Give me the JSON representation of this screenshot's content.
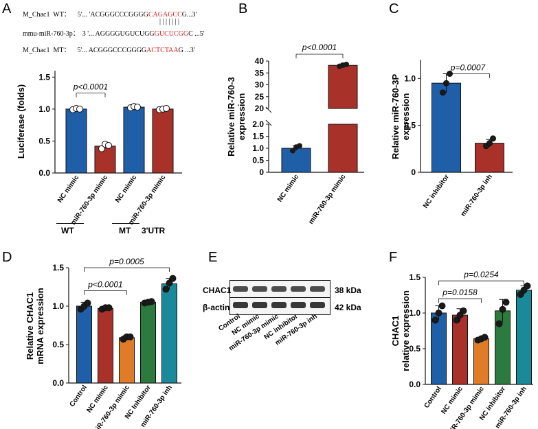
{
  "labels": {
    "A": "A",
    "B": "B",
    "C": "C",
    "D": "D",
    "E": "E",
    "F": "F"
  },
  "sequences": {
    "wt_label": "M_Chac1  WT：",
    "wt_prefix": "5'... 'ACGGGCCCGGGG",
    "wt_red": "CAGAGCC",
    "wt_suffix": "G...3'",
    "bars": "| | | | | | |",
    "mir_label": "mmu-miR-760-3p：",
    "mir_prefix": "3 '... AGGGGUGUCUGG",
    "mir_red": "GUCUCGG",
    "mir_suffix": "C ...5'",
    "mt_label": "M_Chac1  MT：",
    "mt_prefix": "5'... ACGGGCCCGGGG",
    "mt_red": "ACTCTAA",
    "mt_suffix": "G ...3'"
  },
  "colors": {
    "blue": "#1f5fa8",
    "red": "#a8322a",
    "orange": "#e07b27",
    "green": "#2d7a3e",
    "teal": "#1a8a9a"
  },
  "groups_A": {
    "wt": "WT",
    "mt": "MT",
    "utr": "3'UTR"
  },
  "western": {
    "bands": [
      {
        "name": "CHAC1",
        "kda": "38 kDa"
      },
      {
        "name": "β-actin",
        "kda": "42 kDa"
      }
    ],
    "lanes": [
      "Control",
      "NC mimic",
      "miR-760-3p mimic",
      "NC inhibitor",
      "miR-760-3p inh"
    ]
  },
  "chart_data": [
    {
      "panel": "A",
      "type": "bar",
      "ylabel": "Luciferase (folds)",
      "ylim": [
        0,
        1.6
      ],
      "yticks": [
        0.0,
        0.5,
        1.0,
        1.5
      ],
      "categories": [
        "NC mimic",
        "miR-760-3p mimic",
        "NC mimic",
        "miR-760-3p mimic"
      ],
      "values": [
        1.0,
        0.42,
        1.03,
        1.0
      ],
      "errors": [
        0.02,
        0.04,
        0.02,
        0.02
      ],
      "points": [
        [
          0.99,
          1.01,
          1.0
        ],
        [
          0.38,
          0.45,
          0.43
        ],
        [
          1.02,
          1.04,
          1.03
        ],
        [
          0.99,
          1.0,
          1.01
        ]
      ],
      "colors": [
        "blue",
        "red",
        "blue",
        "red"
      ],
      "annotations": [
        {
          "from": 0,
          "to": 1,
          "text": "p<0.0001",
          "y": 1.25
        }
      ]
    },
    {
      "panel": "B",
      "type": "bar",
      "ylabel": "Relative miR-760-3 expression",
      "broken": true,
      "yticks_low": [
        "0",
        "0.5",
        "1.0",
        "1.5",
        "2.0"
      ],
      "yticks_high": [
        "20",
        "25",
        "30",
        "35",
        "40"
      ],
      "categories": [
        "NC mimic",
        "miR-760-3p mimic"
      ],
      "values": [
        1.0,
        38.2
      ],
      "errors": [
        0.1,
        0.6
      ],
      "points": [
        [
          0.9,
          1.05,
          1.1
        ],
        [
          37.8,
          38.3,
          38.6
        ]
      ],
      "colors": [
        "blue",
        "red"
      ],
      "annotations": [
        {
          "from": 0,
          "to": 1,
          "text": "p<0.0001"
        }
      ]
    },
    {
      "panel": "C",
      "type": "bar",
      "ylabel": "Relative miR-760-3P expression",
      "ylim": [
        0,
        1.2
      ],
      "yticks": [
        0,
        0.5,
        1.0
      ],
      "categories": [
        "NC inhibitor",
        "miR-760-3p inh"
      ],
      "values": [
        0.95,
        0.31
      ],
      "errors": [
        0.1,
        0.04
      ],
      "points": [
        [
          0.85,
          0.95,
          1.05
        ],
        [
          0.28,
          0.31,
          0.36
        ]
      ],
      "colors": [
        "blue",
        "red"
      ],
      "annotations": [
        {
          "from": 0,
          "to": 1,
          "text": "p=0.0007",
          "y": 1.05
        }
      ]
    },
    {
      "panel": "D",
      "type": "bar",
      "ylabel": "Relative CHAC1 mRNA expression",
      "ylim": [
        0,
        1.5
      ],
      "yticks": [
        0.0,
        0.5,
        1.0,
        1.5
      ],
      "categories": [
        "Control",
        "NC mimic",
        "miR-760-3p mimic",
        "NC Inhibitor",
        "miR-760-3p inh"
      ],
      "values": [
        1.0,
        0.97,
        0.59,
        1.05,
        1.29
      ],
      "errors": [
        0.05,
        0.03,
        0.03,
        0.02,
        0.07
      ],
      "points": [
        [
          0.96,
          1.0,
          1.04
        ],
        [
          0.96,
          0.98,
          0.98
        ],
        [
          0.57,
          0.6,
          0.6
        ],
        [
          1.04,
          1.05,
          1.06
        ],
        [
          1.22,
          1.3,
          1.36
        ]
      ],
      "colors": [
        "blue",
        "red",
        "orange",
        "green",
        "teal"
      ],
      "annotations": [
        {
          "from": 0,
          "to": 2,
          "text": "p<0.0001",
          "y": 1.2
        },
        {
          "from": 0,
          "to": 4,
          "text": "p=0.0005",
          "y": 1.5
        }
      ]
    },
    {
      "panel": "F",
      "type": "bar",
      "ylabel": "CHAC1 relative expression",
      "ylim": [
        0,
        1.5
      ],
      "yticks": [
        0.0,
        0.5,
        1.0,
        1.5
      ],
      "categories": [
        "Control",
        "NC mimic",
        "miR-760-3p mimic",
        "NC inhibitor",
        "miR-760-3p inh"
      ],
      "values": [
        1.0,
        0.97,
        0.64,
        1.03,
        1.32
      ],
      "errors": [
        0.1,
        0.09,
        0.02,
        0.16,
        0.06
      ],
      "points": [
        [
          0.9,
          1.0,
          1.1
        ],
        [
          0.9,
          0.97,
          1.03
        ],
        [
          0.62,
          0.64,
          0.66
        ],
        [
          0.85,
          1.05,
          1.15
        ],
        [
          1.26,
          1.32,
          1.38
        ]
      ],
      "colors": [
        "blue",
        "red",
        "orange",
        "green",
        "teal"
      ],
      "annotations": [
        {
          "from": 0,
          "to": 2,
          "text": "p=0.0158",
          "y": 1.2
        },
        {
          "from": 0,
          "to": 4,
          "text": "p=0.0254",
          "y": 1.45
        }
      ]
    }
  ]
}
